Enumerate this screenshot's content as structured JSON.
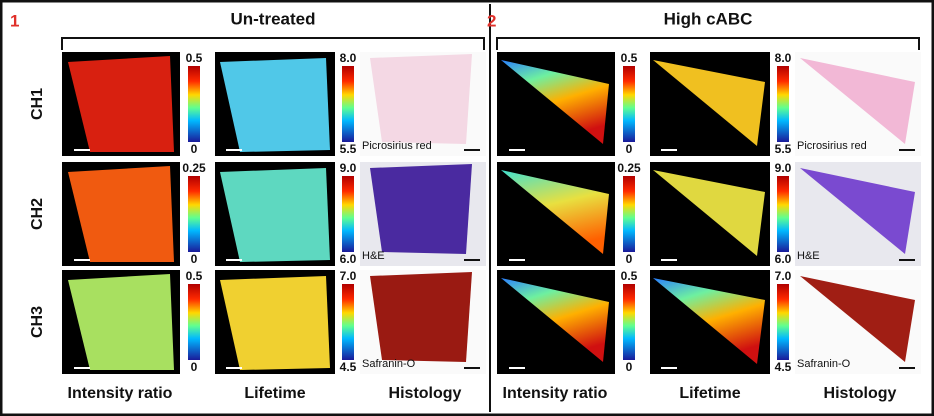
{
  "row_labels": [
    "CH1",
    "CH2",
    "CH3"
  ],
  "panels": [
    {
      "number": "1",
      "title": "Un-treated",
      "columns": [
        "Intensity ratio",
        "Lifetime",
        "Histology"
      ],
      "rows": [
        {
          "intensity_scale": [
            "0.5",
            "0"
          ],
          "lifetime_scale": [
            "8.0",
            "5.5"
          ],
          "stain": "Picrosirius red"
        },
        {
          "intensity_scale": [
            "0.25",
            "0"
          ],
          "lifetime_scale": [
            "9.0",
            "6.0"
          ],
          "stain": "H&E"
        },
        {
          "intensity_scale": [
            "0.5",
            "0"
          ],
          "lifetime_scale": [
            "7.0",
            "4.5"
          ],
          "stain": "Safranin-O"
        }
      ]
    },
    {
      "number": "2",
      "title": "High cABC",
      "columns": [
        "Intensity ratio",
        "Lifetime",
        "Histology"
      ],
      "rows": [
        {
          "intensity_scale": [
            "0.5",
            "0"
          ],
          "lifetime_scale": [
            "8.0",
            "5.5"
          ],
          "stain": "Picrosirius red"
        },
        {
          "intensity_scale": [
            "0.25",
            "0"
          ],
          "lifetime_scale": [
            "9.0",
            "6.0"
          ],
          "stain": "H&E"
        },
        {
          "intensity_scale": [
            "0.5",
            "0"
          ],
          "lifetime_scale": [
            "7.0",
            "4.5"
          ],
          "stain": "Safranin-O"
        }
      ]
    }
  ]
}
